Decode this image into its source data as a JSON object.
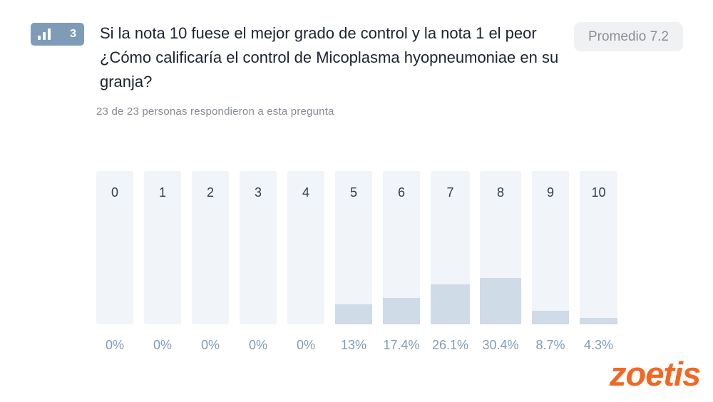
{
  "question": {
    "number": "3",
    "icon": "bar-chart-icon",
    "title": "Si la nota 10 fuese el mejor grado de control y la nota 1 el peor ¿Cómo calificaría el control de Micoplasma hyopneumoniae en su granja?",
    "average": "Promedio 7.2",
    "respondents": "23 de 23 personas respondieron a esta pregunta"
  },
  "colors": {
    "badge": "#7e9cb7",
    "bar_background": "#f1f4f8",
    "bar_fill": "#cfdbe7",
    "percent_text": "#7e9cb7",
    "logo": "#f26722"
  },
  "logo": {
    "text": "zoetis",
    "icon": "zoetis-logo"
  },
  "chart_data": {
    "type": "bar",
    "title": "",
    "xlabel": "",
    "ylabel": "",
    "ylim": [
      0,
      100
    ],
    "categories": [
      "0",
      "1",
      "2",
      "3",
      "4",
      "5",
      "6",
      "7",
      "8",
      "9",
      "10"
    ],
    "values": [
      0,
      0,
      0,
      0,
      0,
      13,
      17.4,
      26.1,
      30.4,
      8.7,
      4.3
    ],
    "value_labels": [
      "0%",
      "0%",
      "0%",
      "0%",
      "0%",
      "13%",
      "17.4%",
      "26.1%",
      "30.4%",
      "8.7%",
      "4.3%"
    ],
    "grid": false,
    "legend": "none"
  }
}
